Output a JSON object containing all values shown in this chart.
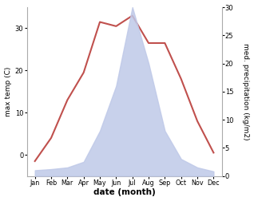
{
  "months": [
    "Jan",
    "Feb",
    "Mar",
    "Apr",
    "May",
    "Jun",
    "Jul",
    "Aug",
    "Sep",
    "Oct",
    "Nov",
    "Dec"
  ],
  "temp": [
    -1.5,
    4.0,
    13.0,
    19.5,
    31.5,
    30.5,
    33.0,
    26.5,
    26.5,
    18.0,
    8.0,
    0.5
  ],
  "precip": [
    1.0,
    1.2,
    1.5,
    2.5,
    8.0,
    16.0,
    30.0,
    20.0,
    8.0,
    3.0,
    1.5,
    0.8
  ],
  "temp_color": "#c0504d",
  "precip_fill_color": "#bfc9e8",
  "temp_ylim": [
    -5,
    35
  ],
  "precip_ylim": [
    0,
    30
  ],
  "temp_yticks": [
    0,
    10,
    20,
    30
  ],
  "precip_yticks": [
    0,
    5,
    10,
    15,
    20,
    25,
    30
  ],
  "xlabel": "date (month)",
  "ylabel_left": "max temp (C)",
  "ylabel_right": "med. precipitation (kg/m2)",
  "bg_color": "#ffffff",
  "line_width": 1.5
}
